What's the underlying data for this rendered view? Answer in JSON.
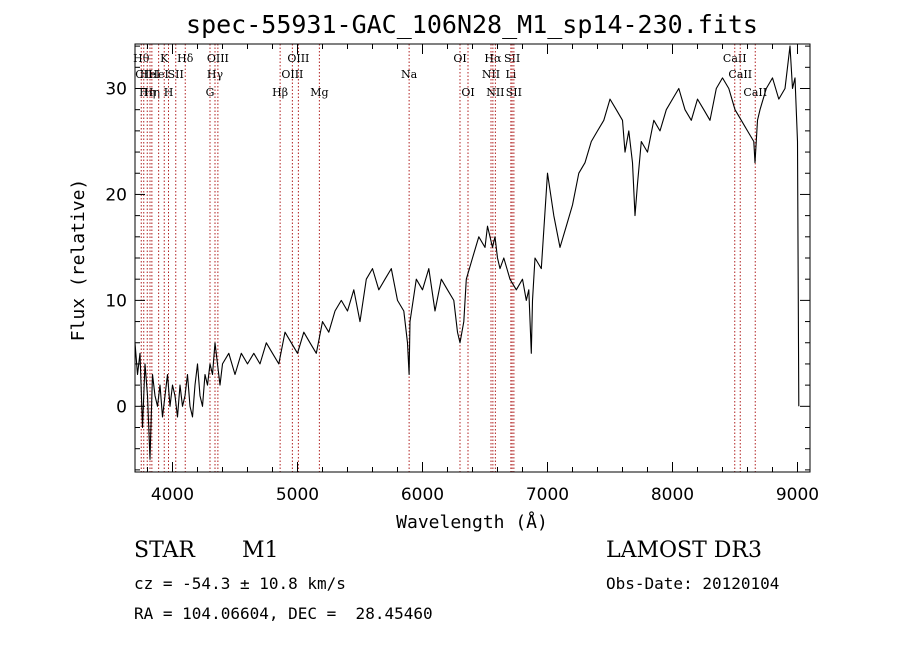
{
  "chart_data": {
    "type": "line",
    "title": "spec-55931-GAC_106N28_M1_sp14-230.fits",
    "xlabel": "Wavelength (Å)",
    "ylabel": "Flux (relative)",
    "xlim": [
      3700,
      9100
    ],
    "ylim": [
      -6.2,
      34.2
    ],
    "x_ticks": [
      4000,
      5000,
      6000,
      7000,
      8000,
      9000
    ],
    "y_ticks": [
      0,
      10,
      20,
      30
    ],
    "x_tick_labels": [
      "4000",
      "5000",
      "6000",
      "7000",
      "8000",
      "9000"
    ],
    "y_tick_labels": [
      "0",
      "10",
      "20",
      "30"
    ],
    "series": [
      {
        "name": "flux",
        "x": [
          3700,
          3720,
          3740,
          3760,
          3780,
          3800,
          3820,
          3840,
          3860,
          3880,
          3900,
          3920,
          3940,
          3960,
          3980,
          4000,
          4020,
          4040,
          4060,
          4080,
          4100,
          4120,
          4140,
          4160,
          4180,
          4200,
          4220,
          4240,
          4260,
          4280,
          4300,
          4320,
          4340,
          4360,
          4380,
          4400,
          4450,
          4500,
          4550,
          4600,
          4650,
          4700,
          4750,
          4800,
          4850,
          4900,
          4950,
          5000,
          5050,
          5100,
          5150,
          5200,
          5250,
          5300,
          5350,
          5400,
          5450,
          5500,
          5550,
          5600,
          5650,
          5700,
          5750,
          5800,
          5850,
          5880,
          5893,
          5900,
          5950,
          6000,
          6050,
          6100,
          6150,
          6200,
          6250,
          6280,
          6300,
          6330,
          6350,
          6400,
          6450,
          6500,
          6520,
          6540,
          6560,
          6580,
          6600,
          6620,
          6650,
          6700,
          6750,
          6800,
          6830,
          6850,
          6870,
          6880,
          6900,
          6950,
          7000,
          7050,
          7100,
          7150,
          7200,
          7250,
          7300,
          7350,
          7400,
          7450,
          7500,
          7550,
          7600,
          7620,
          7650,
          7680,
          7700,
          7720,
          7750,
          7800,
          7850,
          7900,
          7950,
          8000,
          8050,
          8100,
          8150,
          8200,
          8250,
          8300,
          8350,
          8400,
          8450,
          8500,
          8550,
          8600,
          8650,
          8660,
          8680,
          8700,
          8750,
          8800,
          8850,
          8900,
          8920,
          8940,
          8960,
          8980,
          9000,
          9010
        ],
        "y": [
          6,
          3,
          5,
          -2,
          4,
          1,
          -5,
          3,
          1,
          0,
          2,
          -1,
          1,
          3,
          0,
          2,
          1,
          -1,
          2,
          0,
          1,
          3,
          0,
          -1,
          2,
          4,
          1,
          0,
          3,
          2,
          4,
          3,
          6,
          4,
          2,
          4,
          5,
          3,
          5,
          4,
          5,
          4,
          6,
          5,
          4,
          7,
          6,
          5,
          7,
          6,
          5,
          8,
          7,
          9,
          10,
          9,
          11,
          8,
          12,
          13,
          11,
          12,
          13,
          10,
          9,
          6,
          3,
          8,
          12,
          11,
          13,
          9,
          12,
          11,
          10,
          7,
          6,
          8,
          12,
          14,
          16,
          15,
          17,
          16,
          15,
          16,
          14,
          13,
          14,
          12,
          11,
          12,
          10,
          11,
          5,
          10,
          14,
          13,
          22,
          18,
          15,
          17,
          19,
          22,
          23,
          25,
          26,
          27,
          29,
          28,
          27,
          24,
          26,
          23,
          18,
          21,
          25,
          24,
          27,
          26,
          28,
          29,
          30,
          28,
          27,
          29,
          28,
          27,
          30,
          31,
          30,
          28,
          27,
          26,
          25,
          23,
          27,
          28,
          30,
          31,
          29,
          30,
          32,
          34,
          30,
          31,
          25,
          0
        ],
        "color": "#000000"
      }
    ],
    "spectral_lines": [
      {
        "wavelength": 3750,
        "row": 0,
        "label": "Hθ"
      },
      {
        "wavelength": 3770,
        "row": 1,
        "label": "CII"
      },
      {
        "wavelength": 3798,
        "row": 2,
        "label": "Hη"
      },
      {
        "wavelength": 3820,
        "row": 1,
        "label": "HeI"
      },
      {
        "wavelength": 3835,
        "row": 2,
        "label": "Hη"
      },
      {
        "wavelength": 3889,
        "row": 1,
        "label": "HeI"
      },
      {
        "wavelength": 3934,
        "row": 0,
        "label": "K"
      },
      {
        "wavelength": 3968,
        "row": 2,
        "label": "H"
      },
      {
        "wavelength": 4026,
        "row": 1,
        "label": "SII"
      },
      {
        "wavelength": 4102,
        "row": 0,
        "label": "Hδ"
      },
      {
        "wavelength": 4300,
        "row": 2,
        "label": "G"
      },
      {
        "wavelength": 4340,
        "row": 1,
        "label": "Hγ"
      },
      {
        "wavelength": 4363,
        "row": 0,
        "label": "OIII"
      },
      {
        "wavelength": 4861,
        "row": 2,
        "label": "Hβ"
      },
      {
        "wavelength": 4959,
        "row": 1,
        "label": "OIII"
      },
      {
        "wavelength": 5007,
        "row": 0,
        "label": "OIII"
      },
      {
        "wavelength": 5175,
        "row": 2,
        "label": "Mg"
      },
      {
        "wavelength": 5893,
        "row": 1,
        "label": "Na"
      },
      {
        "wavelength": 6300,
        "row": 0,
        "label": "OI"
      },
      {
        "wavelength": 6364,
        "row": 2,
        "label": "OI"
      },
      {
        "wavelength": 6548,
        "row": 1,
        "label": "NII"
      },
      {
        "wavelength": 6563,
        "row": 0,
        "label": "Hα"
      },
      {
        "wavelength": 6583,
        "row": 2,
        "label": "NII"
      },
      {
        "wavelength": 6707,
        "row": 1,
        "label": "Li"
      },
      {
        "wavelength": 6717,
        "row": 0,
        "label": "SII"
      },
      {
        "wavelength": 6731,
        "row": 2,
        "label": "SII"
      },
      {
        "wavelength": 8498,
        "row": 0,
        "label": "CaII"
      },
      {
        "wavelength": 8542,
        "row": 1,
        "label": "CaII"
      },
      {
        "wavelength": 8662,
        "row": 2,
        "label": "CaII"
      }
    ],
    "line_color": "#b02020",
    "frame_color": "#000000"
  },
  "footer": {
    "object_class": "STAR",
    "subclass": "M1",
    "survey": "LAMOST DR3",
    "redshift": "cz = -54.3 ± 10.8 km/s",
    "obs_date": "Obs-Date: 20120104",
    "coords": "RA = 104.06604, DEC =  28.45460"
  }
}
